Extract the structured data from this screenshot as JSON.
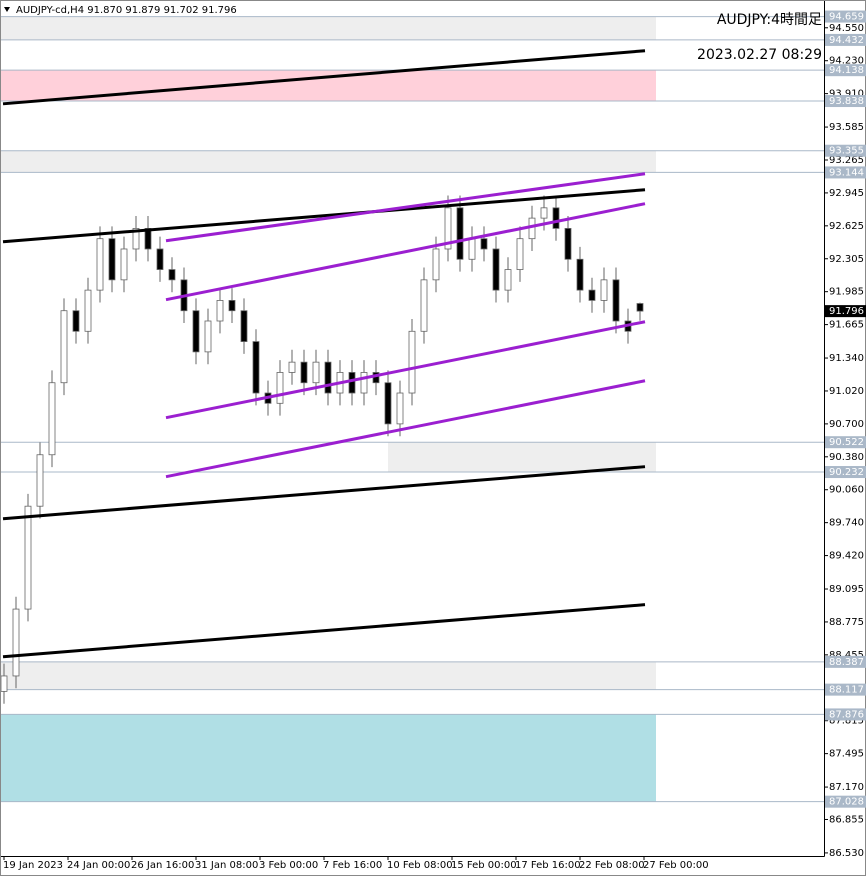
{
  "chart_data": {
    "type": "candlestick",
    "header": "AUDJPY-cd,H4  91.870 91.879 91.702 91.796",
    "annotations": [
      "AUDJPY:4時間足",
      "2023.02.27 08:29"
    ],
    "xlim": [
      -1,
      205
    ],
    "ylim": [
      86.5,
      94.82
    ],
    "xticks": [
      {
        "value": 0,
        "label": "19 Jan 2023"
      },
      {
        "value": 16,
        "label": "24 Jan 00:00"
      },
      {
        "value": 32,
        "label": "26 Jan 16:00"
      },
      {
        "value": 48,
        "label": "31 Jan 08:00"
      },
      {
        "value": 64,
        "label": "3 Feb 00:00"
      },
      {
        "value": 80,
        "label": "7 Feb 16:00"
      },
      {
        "value": 96,
        "label": "10 Feb 08:00"
      },
      {
        "value": 112,
        "label": "15 Feb 00:00"
      },
      {
        "value": 128,
        "label": "17 Feb 16:00"
      },
      {
        "value": 144,
        "label": "22 Feb 08:00"
      },
      {
        "value": 160,
        "label": "27 Feb 00:00"
      }
    ],
    "yticks": [
      {
        "value": 94.55,
        "label": "94.550"
      },
      {
        "value": 94.23,
        "label": "94.230"
      },
      {
        "value": 93.91,
        "label": "93.910"
      },
      93.585,
      93.265,
      92.945,
      92.625,
      92.305,
      91.985,
      91.665,
      {
        "value": 91.34,
        "label": "91.340"
      },
      {
        "value": 91.02,
        "label": "91.020"
      },
      {
        "value": 90.7,
        "label": "90.700"
      },
      {
        "value": 90.38,
        "label": "90.380"
      },
      {
        "value": 90.06,
        "label": "90.060"
      },
      {
        "value": 89.74,
        "label": "89.740"
      },
      {
        "value": 89.42,
        "label": "89.420"
      },
      89.095,
      88.775,
      88.455,
      87.815,
      87.495,
      {
        "value": 87.17,
        "label": "87.170"
      },
      86.855,
      {
        "value": 86.53,
        "label": "86.530"
      }
    ],
    "levels": [
      94.659,
      94.432,
      94.138,
      93.838,
      93.355,
      93.144,
      90.522,
      90.232,
      88.387,
      88.117,
      87.876,
      87.028
    ],
    "level_color": "#aab8c8",
    "current_price": 91.796,
    "zones": [
      {
        "from": 94.659,
        "to": 94.432,
        "x": [
          -1,
          163
        ],
        "color": "#eeeeee"
      },
      {
        "from": 94.138,
        "to": 93.838,
        "x": [
          -1,
          163
        ],
        "color": "#ffd0da"
      },
      {
        "from": 93.355,
        "to": 93.144,
        "x": [
          -1,
          163
        ],
        "color": "#eeeeee"
      },
      {
        "from": 90.522,
        "to": 90.232,
        "x": [
          96,
          163
        ],
        "color": "#eeeeee"
      },
      {
        "from": 88.387,
        "to": 88.117,
        "x": [
          -1,
          163
        ],
        "color": "#eeeeee"
      },
      {
        "from": 87.876,
        "to": 87.028,
        "x": [
          -1,
          163
        ],
        "color": "#b0dfe5"
      }
    ],
    "lines": [
      {
        "color": "#000000",
        "x": [
          -0.25,
          160.25
        ],
        "y": [
          93.811,
          94.327
        ]
      },
      {
        "color": "#000000",
        "x": [
          -0.25,
          160.25
        ],
        "y": [
          92.47,
          92.976
        ]
      },
      {
        "color": "#000000",
        "x": [
          -0.25,
          160.25
        ],
        "y": [
          89.778,
          90.284
        ]
      },
      {
        "color": "#000000",
        "x": [
          -0.25,
          160.25
        ],
        "y": [
          88.437,
          88.943
        ]
      },
      {
        "color": "#9b1fd0",
        "x": [
          40.5,
          160.25
        ],
        "y": [
          92.48,
          93.131
        ]
      },
      {
        "color": "#9b1fd0",
        "x": [
          40.5,
          160.25
        ],
        "y": [
          91.907,
          92.84
        ]
      },
      {
        "color": "#9b1fd0",
        "x": [
          40.5,
          160.25
        ],
        "y": [
          90.76,
          91.693
        ]
      },
      {
        "color": "#9b1fd0",
        "x": [
          40.5,
          160.25
        ],
        "y": [
          90.187,
          91.119
        ]
      }
    ],
    "x": [
      0,
      3,
      6,
      9,
      12,
      15,
      18,
      21,
      24,
      27,
      30,
      33,
      36,
      39,
      42,
      45,
      48,
      51,
      54,
      57,
      60,
      63,
      66,
      69,
      72,
      75,
      78,
      81,
      84,
      87,
      90,
      93,
      96,
      99,
      102,
      105,
      108,
      111,
      114,
      117,
      120,
      123,
      126,
      129,
      132,
      135,
      138,
      141,
      144,
      147,
      150,
      153,
      156,
      159
    ],
    "open": [
      88.1,
      88.25,
      88.9,
      89.9,
      90.4,
      91.1,
      91.8,
      91.6,
      92.0,
      92.5,
      92.1,
      92.4,
      92.6,
      92.4,
      92.2,
      92.1,
      91.8,
      91.4,
      91.7,
      91.9,
      91.8,
      91.5,
      91.0,
      90.9,
      91.2,
      91.3,
      91.1,
      91.3,
      91.0,
      91.2,
      91.0,
      91.2,
      91.1,
      90.7,
      91.0,
      91.6,
      92.1,
      92.4,
      92.8,
      92.3,
      92.5,
      92.4,
      92.0,
      92.2,
      92.5,
      92.7,
      92.8,
      92.6,
      92.3,
      92.0,
      91.9,
      92.1,
      91.7,
      91.87
    ],
    "high": [
      88.37,
      89.02,
      90.02,
      90.52,
      91.22,
      91.92,
      91.92,
      92.12,
      92.62,
      92.62,
      92.52,
      92.72,
      92.72,
      92.52,
      92.32,
      92.22,
      91.92,
      91.82,
      92.02,
      92.02,
      91.92,
      91.62,
      91.12,
      91.32,
      91.42,
      91.42,
      91.42,
      91.42,
      91.32,
      91.32,
      91.32,
      91.32,
      91.22,
      91.12,
      91.72,
      92.22,
      92.52,
      92.92,
      92.92,
      92.62,
      92.62,
      92.52,
      92.32,
      92.62,
      92.82,
      92.92,
      92.92,
      92.72,
      92.42,
      92.12,
      92.22,
      92.22,
      91.82,
      91.879
    ],
    "low": [
      87.98,
      88.13,
      88.78,
      89.78,
      90.28,
      90.98,
      91.48,
      91.48,
      91.88,
      91.98,
      91.98,
      92.28,
      92.28,
      92.08,
      91.98,
      91.68,
      91.28,
      91.28,
      91.58,
      91.68,
      91.38,
      90.88,
      90.78,
      90.78,
      91.08,
      90.98,
      90.98,
      90.88,
      90.88,
      90.88,
      90.88,
      90.98,
      90.58,
      90.58,
      90.88,
      91.48,
      91.98,
      92.28,
      92.18,
      92.18,
      92.28,
      91.88,
      91.88,
      92.08,
      92.38,
      92.58,
      92.48,
      92.18,
      91.88,
      91.78,
      91.78,
      91.58,
      91.48,
      91.702
    ],
    "close": [
      88.25,
      88.9,
      89.9,
      90.4,
      91.1,
      91.8,
      91.6,
      92.0,
      92.5,
      92.1,
      92.4,
      92.6,
      92.4,
      92.2,
      92.1,
      91.8,
      91.4,
      91.7,
      91.9,
      91.8,
      91.5,
      91.0,
      90.9,
      91.2,
      91.3,
      91.1,
      91.3,
      91.0,
      91.2,
      91.0,
      91.2,
      91.1,
      90.7,
      91.0,
      91.6,
      92.1,
      92.4,
      92.8,
      92.3,
      92.5,
      92.4,
      92.0,
      92.2,
      92.5,
      92.7,
      92.8,
      92.6,
      92.3,
      92.0,
      91.9,
      92.1,
      91.7,
      91.6,
      91.796
    ],
    "up_color": "#ffffff",
    "down_color": "#000000",
    "wick_color": "#666666"
  }
}
